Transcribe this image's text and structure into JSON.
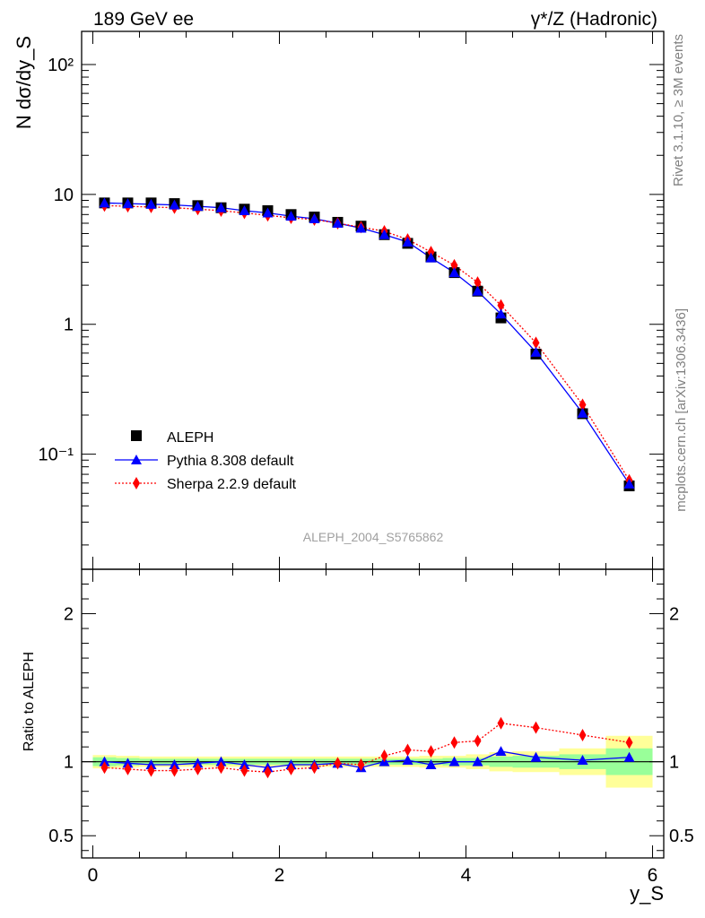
{
  "header": {
    "left": "189 GeV ee",
    "right": "γ*/Z (Hadronic)"
  },
  "side_text": {
    "rivet": "Rivet 3.1.10, ≥ 3M events",
    "mcplots": "mcplots.cern.ch [arXiv:1306.3436]"
  },
  "watermark": "ALEPH_2004_S5765862",
  "colors": {
    "data": "#000000",
    "pythia": "#0000ff",
    "sherpa": "#ff0000",
    "band_inner": "#99ff99",
    "band_outer": "#ffff99"
  },
  "chart_data": [
    {
      "type": "scatter",
      "panel": "main",
      "ylabel": "N dσ/dy_S",
      "yscale": "log",
      "ylim": [
        0.013,
        180
      ],
      "xlim": [
        -0.12,
        6.12
      ],
      "yticks": [
        "10⁻¹",
        "1",
        "10",
        "10²"
      ],
      "legend_position": "bottom-left",
      "x": [
        0.125,
        0.375,
        0.625,
        0.875,
        1.125,
        1.375,
        1.625,
        1.875,
        2.125,
        2.375,
        2.625,
        2.875,
        3.125,
        3.375,
        3.625,
        3.875,
        4.125,
        4.375,
        4.75,
        5.25,
        5.75
      ],
      "series": [
        {
          "name": "ALEPH",
          "marker": "square",
          "values": [
            8.6,
            8.6,
            8.6,
            8.5,
            8.2,
            7.9,
            7.7,
            7.5,
            7.0,
            6.7,
            6.1,
            5.7,
            4.9,
            4.2,
            3.3,
            2.5,
            1.8,
            1.12,
            0.59,
            0.205,
            0.057
          ]
        },
        {
          "name": "Pythia 8.308 default",
          "marker": "triangle",
          "values": [
            8.6,
            8.5,
            8.4,
            8.3,
            8.1,
            7.9,
            7.5,
            7.2,
            6.8,
            6.5,
            6.0,
            5.5,
            4.9,
            4.3,
            3.25,
            2.5,
            1.8,
            1.2,
            0.61,
            0.207,
            0.059
          ]
        },
        {
          "name": "Sherpa 2.2.9 default",
          "marker": "diamond",
          "values": [
            8.2,
            8.1,
            8.0,
            7.9,
            7.7,
            7.5,
            7.2,
            6.9,
            6.6,
            6.4,
            6.0,
            5.6,
            5.2,
            4.5,
            3.6,
            2.85,
            2.1,
            1.4,
            0.72,
            0.24,
            0.063
          ]
        }
      ]
    },
    {
      "type": "scatter",
      "panel": "ratio",
      "xlabel": "y_S",
      "ylabel": "Ratio to ALEPH",
      "ylim": [
        0.35,
        2.3
      ],
      "xlim": [
        -0.12,
        6.12
      ],
      "xticks": [
        "0",
        "2",
        "4",
        "6"
      ],
      "yticks": [
        "0.5",
        "1",
        "2"
      ],
      "bands": {
        "edges": [
          0.0,
          0.25,
          0.5,
          0.75,
          1.0,
          1.25,
          1.5,
          1.75,
          2.0,
          2.25,
          2.5,
          2.75,
          3.0,
          3.25,
          3.5,
          3.75,
          4.0,
          4.25,
          4.5,
          5.0,
          5.5,
          6.0
        ],
        "inner": [
          0.03,
          0.025,
          0.02,
          0.02,
          0.02,
          0.02,
          0.02,
          0.02,
          0.02,
          0.02,
          0.02,
          0.02,
          0.02,
          0.02,
          0.02,
          0.025,
          0.025,
          0.035,
          0.04,
          0.05,
          0.09
        ],
        "outer": [
          0.045,
          0.04,
          0.035,
          0.035,
          0.035,
          0.035,
          0.035,
          0.035,
          0.035,
          0.035,
          0.035,
          0.035,
          0.035,
          0.035,
          0.04,
          0.04,
          0.05,
          0.065,
          0.07,
          0.09,
          0.175
        ]
      },
      "x": [
        0.125,
        0.375,
        0.625,
        0.875,
        1.125,
        1.375,
        1.625,
        1.875,
        2.125,
        2.375,
        2.625,
        2.875,
        3.125,
        3.375,
        3.625,
        3.875,
        4.125,
        4.375,
        4.75,
        5.25,
        5.75
      ],
      "series": [
        {
          "name": "Pythia 8.308 default",
          "marker": "triangle",
          "values": [
            1.0,
            0.99,
            0.98,
            0.98,
            0.99,
            1.0,
            0.98,
            0.96,
            0.98,
            0.98,
            0.99,
            0.96,
            1.0,
            1.01,
            0.98,
            1.0,
            1.0,
            1.07,
            1.03,
            1.01,
            1.03
          ]
        },
        {
          "name": "Sherpa 2.2.9 default",
          "marker": "diamond",
          "values": [
            0.96,
            0.95,
            0.94,
            0.94,
            0.95,
            0.96,
            0.94,
            0.93,
            0.95,
            0.96,
            0.99,
            0.98,
            1.04,
            1.08,
            1.07,
            1.13,
            1.14,
            1.26,
            1.23,
            1.18,
            1.13
          ]
        }
      ]
    }
  ]
}
